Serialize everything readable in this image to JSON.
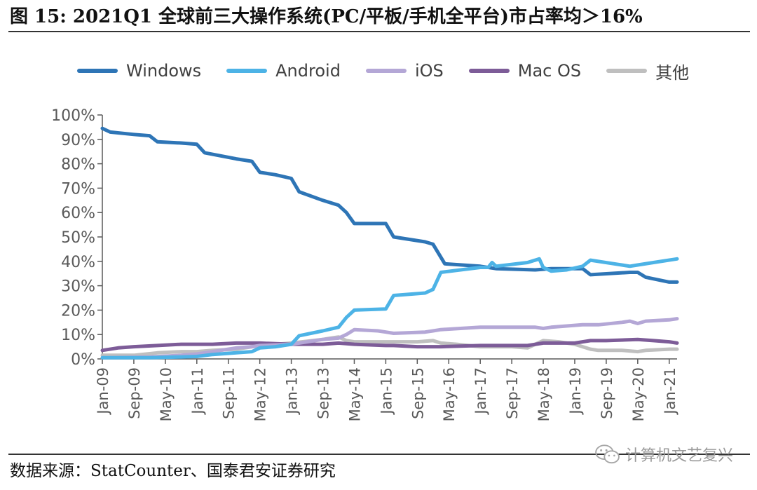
{
  "header": {
    "title": "图 15: 2021Q1 全球前三大操作系统(PC/平板/手机全平台)市占率均＞16%"
  },
  "footer": {
    "source": "数据来源：StatCounter、国泰君安证券研究",
    "watermark": "计算机文艺复兴",
    "watermark_icon": "wechat-icon"
  },
  "colors": {
    "Windows": "#2e75b6",
    "Android": "#4db3e6",
    "iOS": "#b4a7d6",
    "Mac OS": "#7d5c98",
    "其他": "#bfbfbf",
    "axis": "#595959"
  },
  "legend": [
    {
      "label": "Windows"
    },
    {
      "label": "Android"
    },
    {
      "label": "iOS"
    },
    {
      "label": "Mac OS"
    },
    {
      "label": "其他"
    }
  ],
  "chart_data": {
    "type": "line",
    "title": "2021Q1 全球前三大操作系统(PC/平板/手机全平台)市占率均＞16%",
    "xlabel": "",
    "ylabel": "",
    "ylim": [
      0,
      100
    ],
    "y_unit": "%",
    "grid": false,
    "legend_position": "top",
    "x_range_months": [
      0,
      146
    ],
    "x_ticks": [
      {
        "label": "Jan-09",
        "month": 0
      },
      {
        "label": "Sep-09",
        "month": 8
      },
      {
        "label": "May-10",
        "month": 16
      },
      {
        "label": "Jan-11",
        "month": 24
      },
      {
        "label": "Sep-11",
        "month": 32
      },
      {
        "label": "May-12",
        "month": 40
      },
      {
        "label": "Jan-13",
        "month": 48
      },
      {
        "label": "Sep-13",
        "month": 56
      },
      {
        "label": "May-14",
        "month": 64
      },
      {
        "label": "Jan-15",
        "month": 72
      },
      {
        "label": "Sep-15",
        "month": 80
      },
      {
        "label": "May-16",
        "month": 88
      },
      {
        "label": "Jan-17",
        "month": 96
      },
      {
        "label": "Sep-17",
        "month": 104
      },
      {
        "label": "May-18",
        "month": 112
      },
      {
        "label": "Jan-19",
        "month": 120
      },
      {
        "label": "Sep-19",
        "month": 128
      },
      {
        "label": "May-20",
        "month": 136
      },
      {
        "label": "Jan-21",
        "month": 144
      }
    ],
    "y_ticks": [
      {
        "label": "0%",
        "value": 0
      },
      {
        "label": "10%",
        "value": 10
      },
      {
        "label": "20%",
        "value": 20
      },
      {
        "label": "30%",
        "value": 30
      },
      {
        "label": "40%",
        "value": 40
      },
      {
        "label": "50%",
        "value": 50
      },
      {
        "label": "60%",
        "value": 60
      },
      {
        "label": "70%",
        "value": 70
      },
      {
        "label": "80%",
        "value": 80
      },
      {
        "label": "90%",
        "value": 90
      },
      {
        "label": "100%",
        "value": 100
      }
    ],
    "series": [
      {
        "name": "Windows",
        "points": [
          [
            0,
            94.5
          ],
          [
            2,
            93
          ],
          [
            8,
            92
          ],
          [
            12,
            91.5
          ],
          [
            14,
            89
          ],
          [
            20,
            88.5
          ],
          [
            24,
            88
          ],
          [
            26,
            84.5
          ],
          [
            34,
            82
          ],
          [
            38,
            81
          ],
          [
            40,
            76.5
          ],
          [
            44,
            75.5
          ],
          [
            48,
            74
          ],
          [
            50,
            68.5
          ],
          [
            56,
            65
          ],
          [
            60,
            63
          ],
          [
            62,
            60
          ],
          [
            64,
            55.5
          ],
          [
            72,
            55.5
          ],
          [
            74,
            50
          ],
          [
            82,
            48
          ],
          [
            84,
            47
          ],
          [
            87,
            39
          ],
          [
            96,
            38
          ],
          [
            100,
            37
          ],
          [
            110,
            36.5
          ],
          [
            114,
            37
          ],
          [
            122,
            37
          ],
          [
            124,
            34.5
          ],
          [
            134,
            35.5
          ],
          [
            136,
            35.5
          ],
          [
            138,
            33.5
          ],
          [
            144,
            31.5
          ],
          [
            146,
            31.5
          ]
        ]
      },
      {
        "name": "Android",
        "points": [
          [
            0,
            0.5
          ],
          [
            12,
            0.5
          ],
          [
            20,
            0.8
          ],
          [
            24,
            1
          ],
          [
            28,
            1.8
          ],
          [
            34,
            2.5
          ],
          [
            38,
            3
          ],
          [
            40,
            4.5
          ],
          [
            44,
            5
          ],
          [
            48,
            6
          ],
          [
            50,
            9.5
          ],
          [
            56,
            11.5
          ],
          [
            60,
            13
          ],
          [
            62,
            17
          ],
          [
            64,
            20
          ],
          [
            72,
            20.5
          ],
          [
            74,
            26
          ],
          [
            82,
            27
          ],
          [
            84,
            28.5
          ],
          [
            86,
            35.5
          ],
          [
            96,
            37.5
          ],
          [
            98,
            37.5
          ],
          [
            99,
            39.5
          ],
          [
            100,
            38
          ],
          [
            108,
            39.5
          ],
          [
            111,
            41
          ],
          [
            112,
            37.5
          ],
          [
            114,
            36
          ],
          [
            118,
            36.5
          ],
          [
            122,
            38
          ],
          [
            124,
            40.5
          ],
          [
            130,
            39
          ],
          [
            134,
            38
          ],
          [
            136,
            38.5
          ],
          [
            140,
            39.5
          ],
          [
            146,
            41
          ]
        ]
      },
      {
        "name": "iOS",
        "points": [
          [
            0,
            0.5
          ],
          [
            12,
            0.8
          ],
          [
            20,
            1.5
          ],
          [
            24,
            2
          ],
          [
            28,
            3
          ],
          [
            34,
            4.5
          ],
          [
            38,
            5
          ],
          [
            40,
            5.5
          ],
          [
            48,
            6
          ],
          [
            56,
            8
          ],
          [
            60,
            8.5
          ],
          [
            62,
            10
          ],
          [
            64,
            12
          ],
          [
            70,
            11.5
          ],
          [
            72,
            11
          ],
          [
            74,
            10.5
          ],
          [
            82,
            11
          ],
          [
            84,
            11.5
          ],
          [
            86,
            12
          ],
          [
            96,
            13
          ],
          [
            110,
            13
          ],
          [
            112,
            12.5
          ],
          [
            114,
            13
          ],
          [
            122,
            14
          ],
          [
            126,
            14
          ],
          [
            132,
            15
          ],
          [
            134,
            15.5
          ],
          [
            136,
            14.5
          ],
          [
            138,
            15.5
          ],
          [
            144,
            16
          ],
          [
            146,
            16.5
          ]
        ]
      },
      {
        "name": "Mac OS",
        "points": [
          [
            0,
            3.5
          ],
          [
            4,
            4.5
          ],
          [
            8,
            5
          ],
          [
            14,
            5.5
          ],
          [
            20,
            6
          ],
          [
            24,
            6
          ],
          [
            28,
            6
          ],
          [
            34,
            6.5
          ],
          [
            40,
            6.5
          ],
          [
            48,
            6
          ],
          [
            56,
            6
          ],
          [
            60,
            6.5
          ],
          [
            64,
            6
          ],
          [
            72,
            5.5
          ],
          [
            74,
            5.5
          ],
          [
            80,
            5
          ],
          [
            86,
            5
          ],
          [
            96,
            5.5
          ],
          [
            108,
            5.5
          ],
          [
            112,
            6.5
          ],
          [
            116,
            6.5
          ],
          [
            120,
            6.5
          ],
          [
            124,
            7.5
          ],
          [
            128,
            7.5
          ],
          [
            136,
            8
          ],
          [
            140,
            7.5
          ],
          [
            144,
            7
          ],
          [
            146,
            6.5
          ]
        ]
      },
      {
        "name": "其他",
        "points": [
          [
            0,
            1.5
          ],
          [
            8,
            1.5
          ],
          [
            14,
            2.5
          ],
          [
            20,
            3
          ],
          [
            24,
            3
          ],
          [
            28,
            3.5
          ],
          [
            34,
            4
          ],
          [
            38,
            5
          ],
          [
            40,
            5.5
          ],
          [
            48,
            6.5
          ],
          [
            56,
            8
          ],
          [
            58,
            8.5
          ],
          [
            60,
            9
          ],
          [
            62,
            7.5
          ],
          [
            64,
            7
          ],
          [
            72,
            7
          ],
          [
            80,
            7
          ],
          [
            84,
            7.5
          ],
          [
            86,
            6.5
          ],
          [
            90,
            6
          ],
          [
            96,
            5
          ],
          [
            104,
            5
          ],
          [
            108,
            4.5
          ],
          [
            112,
            7.5
          ],
          [
            116,
            7
          ],
          [
            120,
            6
          ],
          [
            122,
            5
          ],
          [
            124,
            4
          ],
          [
            126,
            3.5
          ],
          [
            132,
            3.5
          ],
          [
            136,
            3
          ],
          [
            138,
            3.5
          ],
          [
            144,
            4
          ],
          [
            146,
            4
          ]
        ]
      }
    ]
  }
}
